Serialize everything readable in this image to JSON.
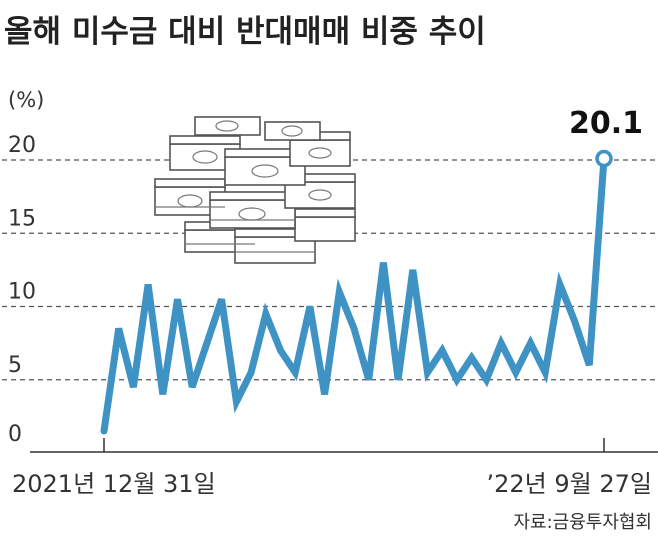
{
  "chart_data": {
    "type": "line",
    "title": "올해 미수금 대비 반대매매 비중 추이",
    "unit_label": "(%)",
    "yticks": [
      "0",
      "5",
      "10",
      "15",
      "20"
    ],
    "ylim": [
      0,
      20
    ],
    "grid": true,
    "x_start_label": "2021년 12월 31일",
    "x_end_label": "’22년 9월 27일",
    "peak_label": "20.1",
    "source": "자료:금융투자협회",
    "colors": {
      "line": "#3e93c4",
      "marker_fill": "#ffffff"
    },
    "series": [
      {
        "values": [
          1.5,
          8.5,
          4.5,
          11.5,
          4,
          10.5,
          4.5,
          7.5,
          10.5,
          3.5,
          5.5,
          9.5,
          7,
          5.5,
          10,
          4,
          11,
          8.5,
          5,
          13,
          5,
          12.5,
          5.5,
          7,
          5,
          6.5,
          5,
          7.5,
          5.5,
          7.5,
          5.5,
          11.5,
          9,
          6,
          20.1
        ]
      }
    ]
  }
}
